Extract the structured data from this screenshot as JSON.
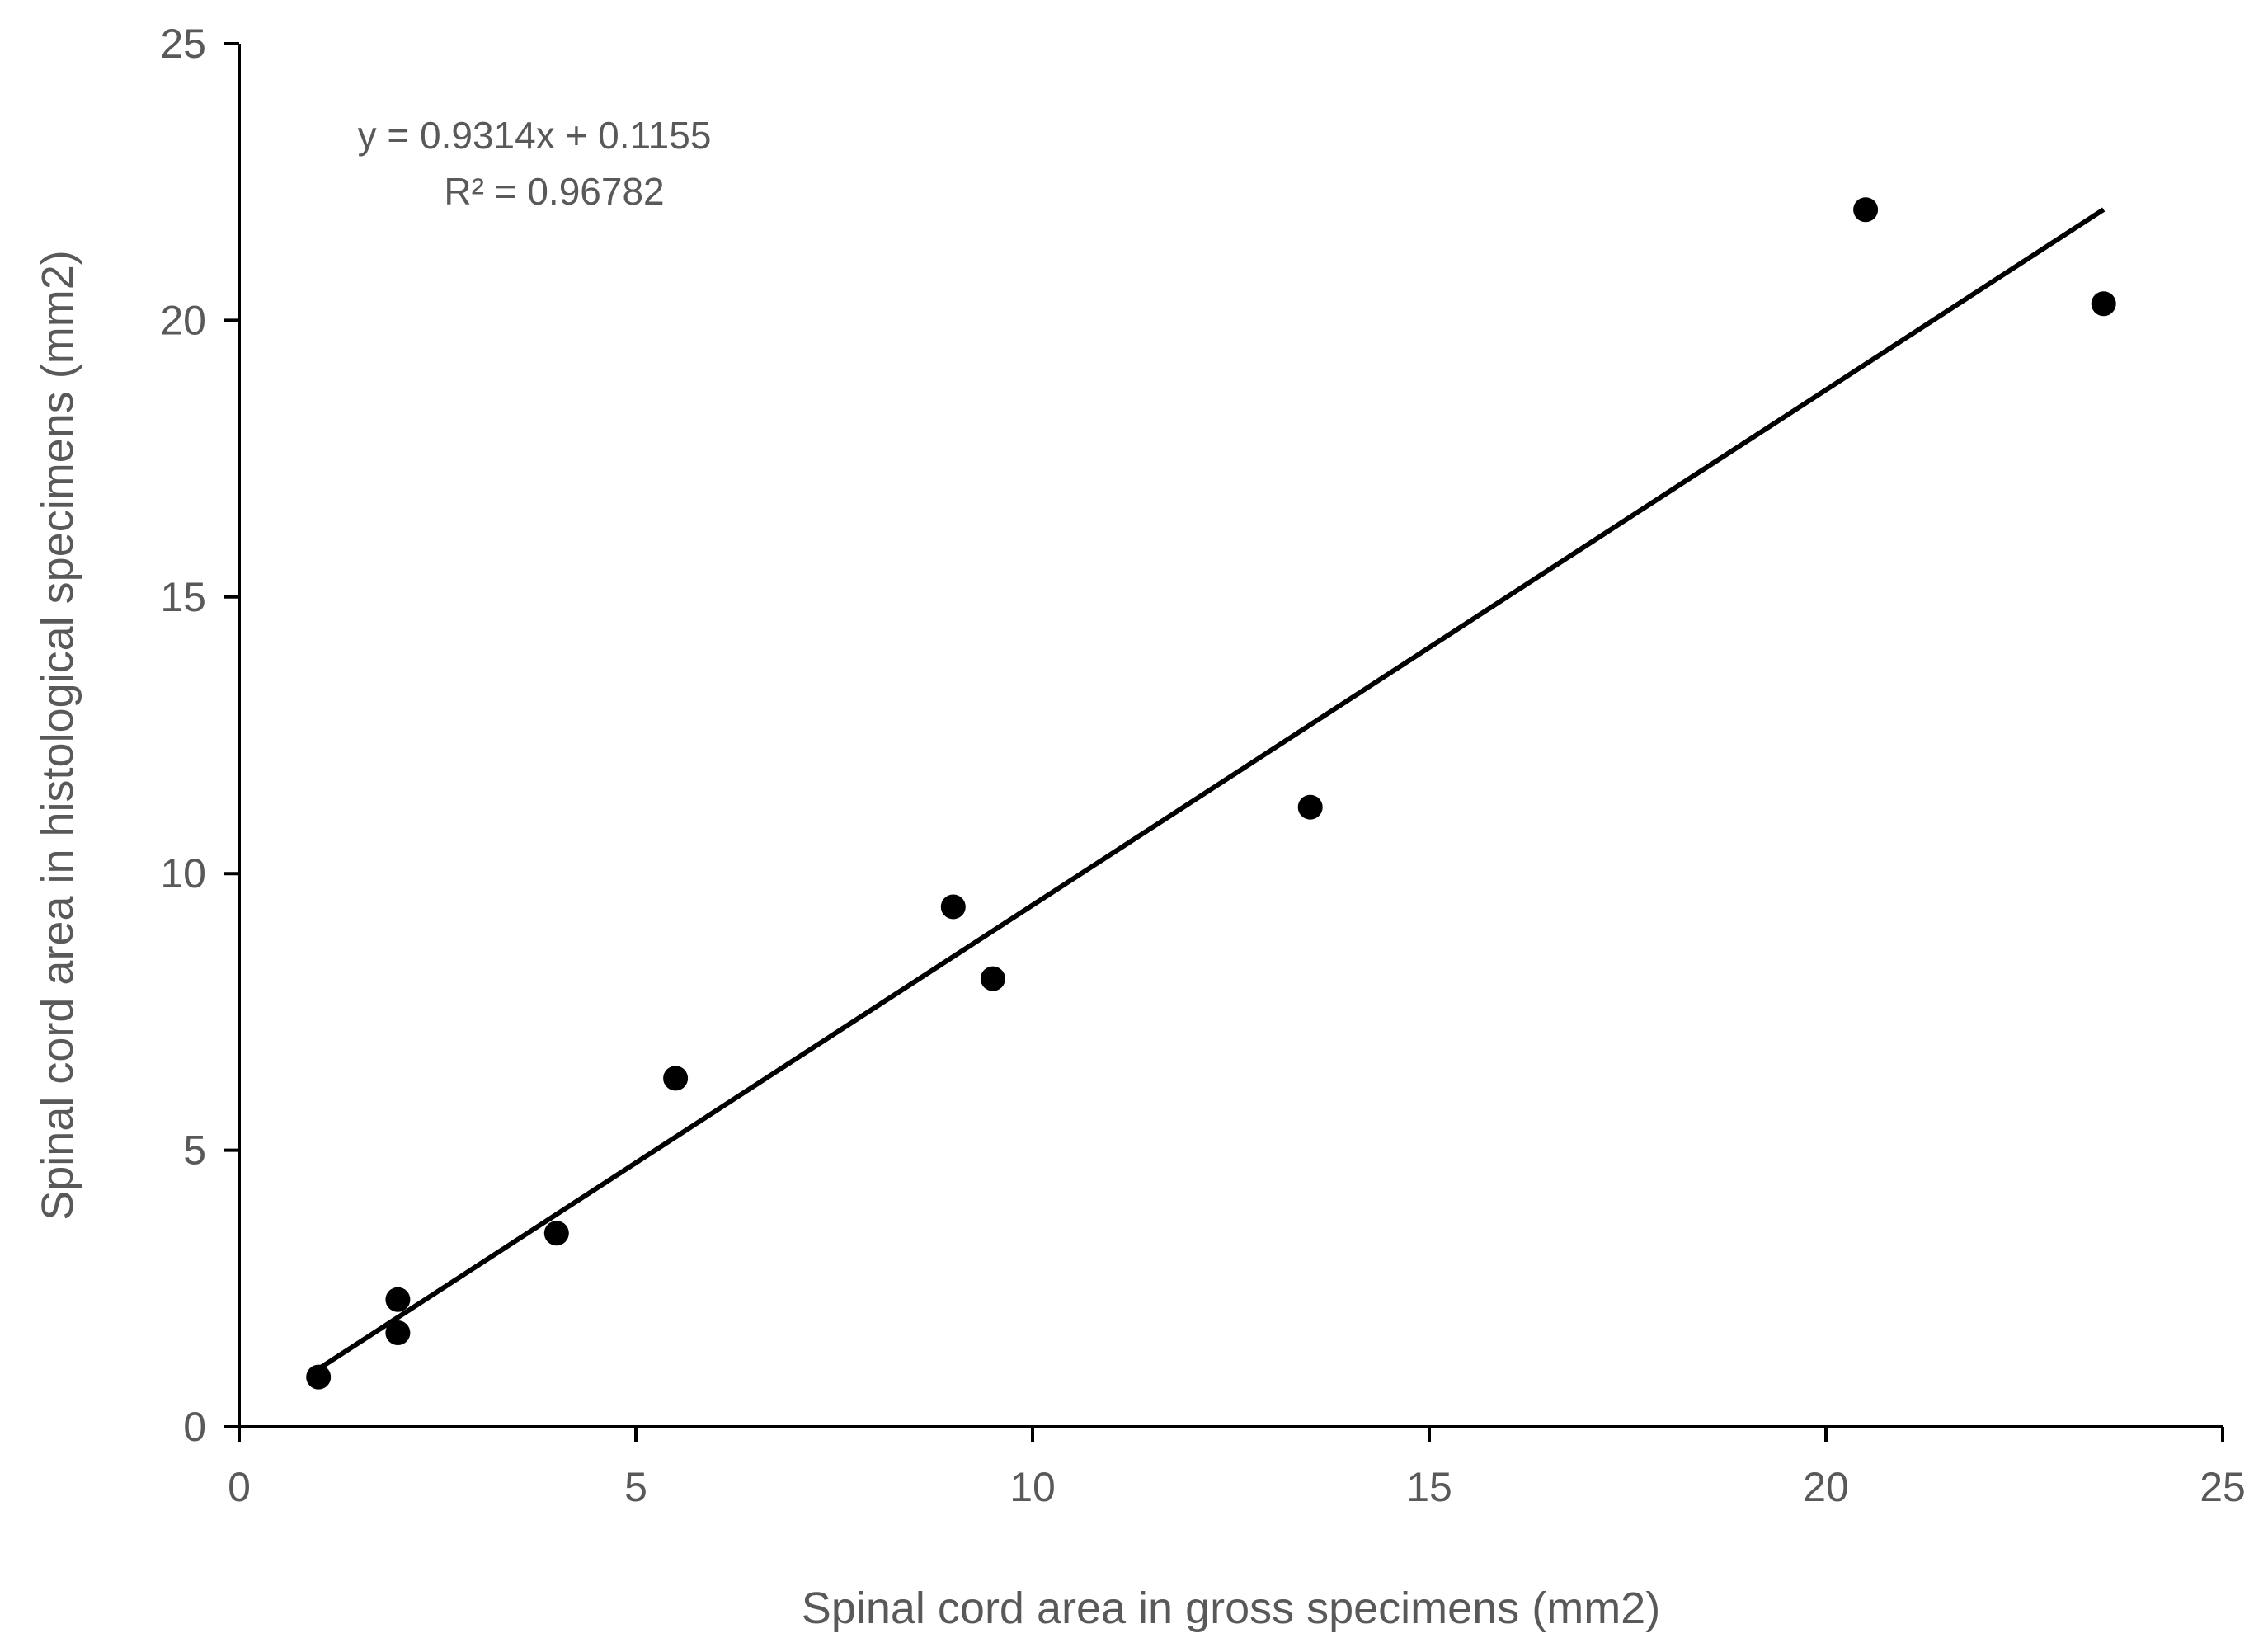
{
  "chart_data": {
    "type": "scatter",
    "title": "",
    "xlabel": "Spinal cord area in gross specimens (mm2)",
    "ylabel": "Spinal cord area in histological specimens (mm2)",
    "xlim": [
      0,
      25
    ],
    "ylim": [
      0,
      25
    ],
    "xticks": [
      "0",
      "5",
      "10",
      "15",
      "20",
      "25"
    ],
    "yticks": [
      "0",
      "5",
      "10",
      "15",
      "20",
      "25"
    ],
    "grid": false,
    "legend": "none",
    "point_color": "#000000",
    "series": [
      {
        "x": [
          1.0,
          2.0,
          2.0,
          4.0,
          5.5,
          9.0,
          9.5,
          13.5,
          20.5,
          23.5
        ],
        "y": [
          0.9,
          1.7,
          2.3,
          3.5,
          6.3,
          9.4,
          8.1,
          11.2,
          22.0,
          20.3
        ]
      }
    ],
    "trendline": {
      "type": "linear",
      "slope": 0.9314,
      "intercept": 0.1155,
      "x_range": [
        1.0,
        23.5
      ]
    },
    "annotations": [
      "y = 0.9314x + 0.1155",
      "R² = 0.96782"
    ]
  }
}
